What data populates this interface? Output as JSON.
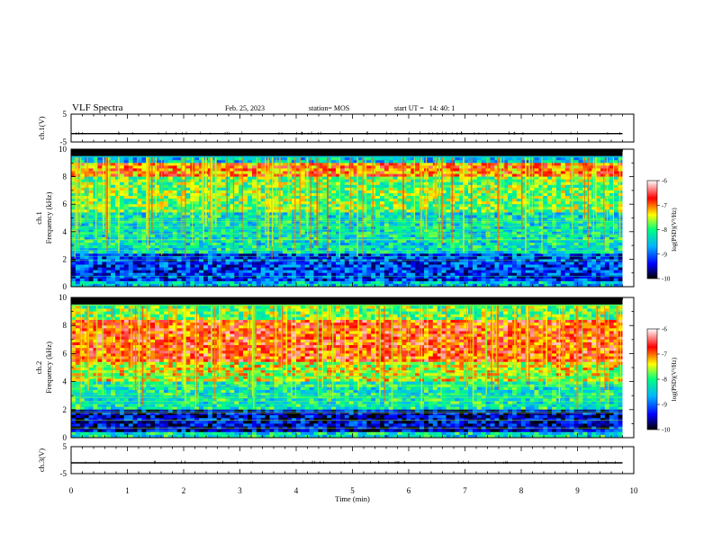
{
  "header": {
    "title": "VLF Spectra",
    "date": "Feb. 25, 2023",
    "station": "station= MOS",
    "start": "start UT =   14: 40: 1"
  },
  "chart_data": [
    {
      "type": "line",
      "name": "ch1-waveform",
      "ylabel": "ch.1(V)",
      "ylim": [
        -5,
        5
      ],
      "ytick_labels": [
        "5",
        "-5"
      ],
      "x": [
        0,
        9.8
      ],
      "values": [
        -2,
        -2
      ],
      "xlim": [
        0,
        10
      ]
    },
    {
      "type": "heatmap",
      "name": "ch1-spectrogram",
      "ylabel": "ch.1\nFrequency (kHz)",
      "ylim": [
        0,
        10
      ],
      "xlim": [
        0,
        10
      ],
      "data_extent_min": 9.8,
      "ytick_labels": [
        "0",
        "2",
        "4",
        "6",
        "8",
        "10"
      ],
      "bands": [
        {
          "freq_khz": [
            0,
            0.5
          ],
          "level": -8.5
        },
        {
          "freq_khz": [
            0.5,
            2.5
          ],
          "level": -9.2
        },
        {
          "freq_khz": [
            2.5,
            5.5
          ],
          "level": -8.3
        },
        {
          "freq_khz": [
            5.5,
            8.0
          ],
          "level": -7.8
        },
        {
          "freq_khz": [
            8.0,
            9.0
          ],
          "level": -7.0
        },
        {
          "freq_khz": [
            9.0,
            9.5
          ],
          "level": -8.5
        },
        {
          "freq_khz": [
            9.5,
            10
          ],
          "level": -10
        }
      ],
      "colorbar": {
        "label": "log(PSD)(V²/Hz)",
        "range": [
          -10,
          -6
        ],
        "ticks": [
          "-6",
          "-7",
          "-8",
          "-9",
          "-10"
        ],
        "colors": [
          "#000000",
          "#0000ff",
          "#00b4ff",
          "#00ff80",
          "#ffff00",
          "#ff0000",
          "#ffffff"
        ]
      }
    },
    {
      "type": "heatmap",
      "name": "ch2-spectrogram",
      "ylabel": "ch.2\nFrequency (kHz)",
      "ylim": [
        0,
        10
      ],
      "xlim": [
        0,
        10
      ],
      "data_extent_min": 9.8,
      "ytick_labels": [
        "0",
        "2",
        "4",
        "6",
        "8",
        "10"
      ],
      "bands": [
        {
          "freq_khz": [
            0,
            0.5
          ],
          "level": -8.3
        },
        {
          "freq_khz": [
            0.5,
            2.0
          ],
          "level": -9.5
        },
        {
          "freq_khz": [
            2.0,
            4.0
          ],
          "level": -8.2
        },
        {
          "freq_khz": [
            4.0,
            5.5
          ],
          "level": -7.5
        },
        {
          "freq_khz": [
            5.5,
            8.5
          ],
          "level": -6.8
        },
        {
          "freq_khz": [
            8.5,
            9.5
          ],
          "level": -7.8
        },
        {
          "freq_khz": [
            9.5,
            10
          ],
          "level": -10
        }
      ],
      "colorbar": {
        "label": "log(PSD)(V²/Hz)",
        "range": [
          -10,
          -6
        ],
        "ticks": [
          "-6",
          "-7",
          "-8",
          "-9",
          "-10"
        ],
        "colors": [
          "#000000",
          "#0000ff",
          "#00b4ff",
          "#00ff80",
          "#ffff00",
          "#ff0000",
          "#ffffff"
        ]
      }
    },
    {
      "type": "line",
      "name": "ch3-waveform",
      "ylabel": "ch.3(V)",
      "ylim": [
        -5,
        5
      ],
      "ytick_labels": [
        "5",
        "-5"
      ],
      "x": [
        0,
        9.8
      ],
      "values": [
        -1,
        -1
      ],
      "xlim": [
        0,
        10
      ]
    }
  ],
  "x_axis": {
    "label": "Time (min)",
    "ticks": [
      "0",
      "1",
      "2",
      "3",
      "4",
      "5",
      "6",
      "7",
      "8",
      "9",
      "10"
    ]
  }
}
